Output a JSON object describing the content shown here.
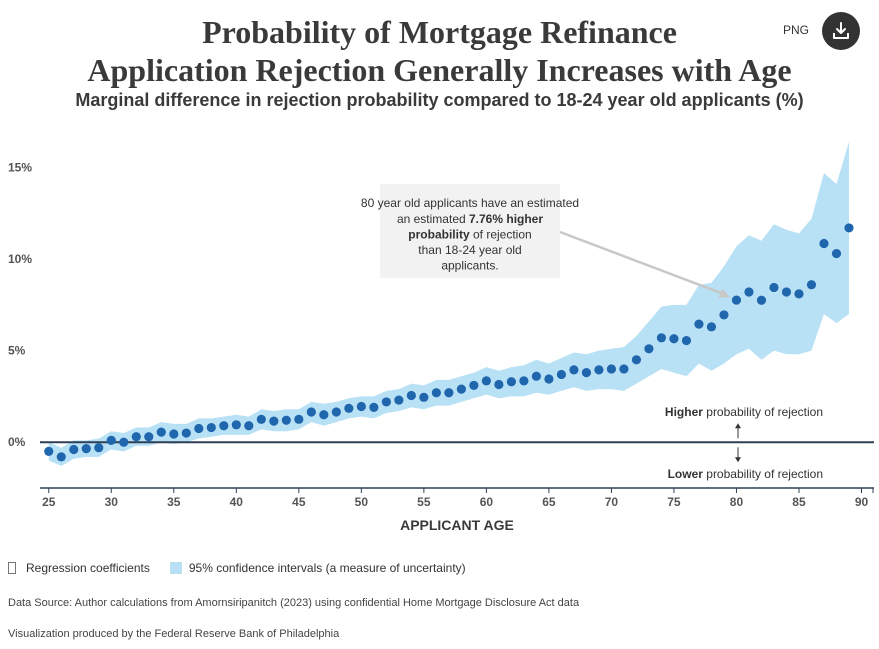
{
  "header": {
    "title_line1": "Probability of Mortgage Refinance",
    "title_line2": "Application Rejection Generally Increases with Age",
    "subtitle": "Marginal difference in rejection probability compared to 18-24 year old applicants (%)",
    "png_label": "PNG"
  },
  "colors": {
    "dot": "#1f66ad",
    "band": "#b8e1f6",
    "zero_line": "#2f3f55"
  },
  "chart_data": {
    "type": "scatter",
    "xlabel": "APPLICANT AGE",
    "ylabel": "",
    "xlim": [
      24.3,
      91
    ],
    "ylim": [
      -2.5,
      16.5
    ],
    "x_ticks": [
      25,
      30,
      35,
      40,
      45,
      50,
      55,
      60,
      65,
      70,
      75,
      80,
      85,
      90
    ],
    "y_ticks": [
      0,
      5,
      10,
      15
    ],
    "y_tick_labels": [
      "0%",
      "5%",
      "10%",
      "15%"
    ],
    "series": [
      {
        "name": "Regression coefficients",
        "x": [
          25,
          26,
          27,
          28,
          29,
          30,
          31,
          32,
          33,
          34,
          35,
          36,
          37,
          38,
          39,
          40,
          41,
          42,
          43,
          44,
          45,
          46,
          47,
          48,
          49,
          50,
          51,
          52,
          53,
          54,
          55,
          56,
          57,
          58,
          59,
          60,
          61,
          62,
          63,
          64,
          65,
          66,
          67,
          68,
          69,
          70,
          71,
          72,
          73,
          74,
          75,
          76,
          77,
          78,
          79,
          80,
          81,
          82,
          83,
          84,
          85,
          86,
          87,
          88,
          89
        ],
        "values": [
          -0.5,
          -0.8,
          -0.4,
          -0.35,
          -0.3,
          0.1,
          0.0,
          0.3,
          0.3,
          0.55,
          0.45,
          0.5,
          0.75,
          0.8,
          0.9,
          0.95,
          0.9,
          1.25,
          1.15,
          1.2,
          1.25,
          1.65,
          1.5,
          1.65,
          1.85,
          1.95,
          1.9,
          2.2,
          2.3,
          2.55,
          2.45,
          2.7,
          2.7,
          2.9,
          3.1,
          3.35,
          3.15,
          3.3,
          3.35,
          3.6,
          3.45,
          3.7,
          3.95,
          3.8,
          3.95,
          4.0,
          4.0,
          4.5,
          5.1,
          5.7,
          5.65,
          5.55,
          6.45,
          6.3,
          6.95,
          7.76,
          8.2,
          7.75,
          8.45,
          8.2,
          8.1,
          8.6,
          10.85,
          10.3,
          11.7
        ]
      },
      {
        "name": "95% confidence intervals (a measure of uncertainty)",
        "x": [
          25,
          26,
          27,
          28,
          29,
          30,
          31,
          32,
          33,
          34,
          35,
          36,
          37,
          38,
          39,
          40,
          41,
          42,
          43,
          44,
          45,
          46,
          47,
          48,
          49,
          50,
          51,
          52,
          53,
          54,
          55,
          56,
          57,
          58,
          59,
          60,
          61,
          62,
          63,
          64,
          65,
          66,
          67,
          68,
          69,
          70,
          71,
          72,
          73,
          74,
          75,
          76,
          77,
          78,
          79,
          80,
          81,
          82,
          83,
          84,
          85,
          86,
          87,
          88,
          89
        ],
        "lower": [
          -1.0,
          -1.3,
          -0.9,
          -0.8,
          -0.8,
          -0.4,
          -0.5,
          -0.2,
          -0.2,
          0.0,
          -0.1,
          0.0,
          0.2,
          0.3,
          0.4,
          0.4,
          0.4,
          0.7,
          0.6,
          0.6,
          0.7,
          1.1,
          0.9,
          1.1,
          1.3,
          1.4,
          1.3,
          1.6,
          1.7,
          1.9,
          1.8,
          2.0,
          2.0,
          2.2,
          2.4,
          2.6,
          2.4,
          2.5,
          2.5,
          2.7,
          2.6,
          2.8,
          3.0,
          2.8,
          2.9,
          2.9,
          2.8,
          3.2,
          3.6,
          4.0,
          3.8,
          3.6,
          4.3,
          3.9,
          4.3,
          4.8,
          5.1,
          4.5,
          5.0,
          4.8,
          4.8,
          5.0,
          7.0,
          6.5,
          7.0
        ],
        "upper": [
          0.0,
          -0.3,
          0.1,
          0.1,
          0.2,
          0.6,
          0.5,
          0.8,
          0.8,
          1.1,
          1.0,
          1.0,
          1.3,
          1.3,
          1.4,
          1.5,
          1.4,
          1.8,
          1.7,
          1.8,
          1.8,
          2.2,
          2.1,
          2.2,
          2.4,
          2.5,
          2.5,
          2.8,
          2.9,
          3.2,
          3.1,
          3.4,
          3.4,
          3.6,
          3.8,
          4.1,
          3.9,
          4.1,
          4.2,
          4.5,
          4.3,
          4.6,
          4.9,
          4.8,
          5.0,
          5.1,
          5.2,
          5.8,
          6.6,
          7.4,
          7.5,
          7.5,
          8.6,
          8.7,
          9.6,
          10.7,
          11.3,
          11.0,
          11.9,
          11.6,
          11.4,
          12.2,
          14.7,
          14.1,
          16.4
        ]
      }
    ],
    "annotations": {
      "callout_plain1": "80 year old applicants have an estimated",
      "callout_bold": "7.76% higher probability",
      "callout_plain2": "of rejection than 18-24 year old applicants.",
      "callout_target_x": 80,
      "callout_target_y": 7.76,
      "higher_bold": "Higher",
      "higher_rest": "probability of rejection",
      "lower_bold": "Lower",
      "lower_rest": "probability of rejection"
    }
  },
  "legend": {
    "coefficients_label": "Regression coefficients",
    "ci_label": "95% confidence intervals (a measure of uncertainty)"
  },
  "footer": {
    "source": "Data Source: Author calculations from Amornsiripanitch (2023) using confidential Home Mortgage Disclosure Act data",
    "credit": "Visualization produced by the Federal Reserve Bank of Philadelphia"
  }
}
